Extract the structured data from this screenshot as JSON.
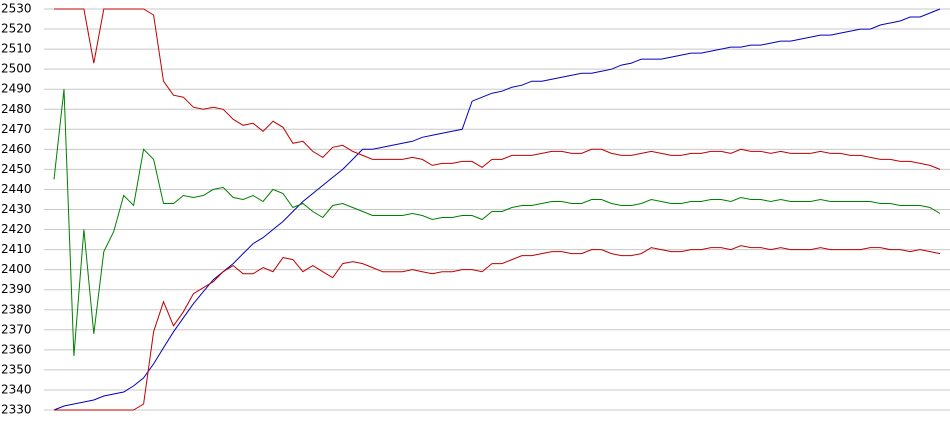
{
  "chart_data": {
    "type": "line",
    "categories": [
      null,
      null,
      null,
      null,
      null,
      null,
      null,
      null,
      null,
      null,
      null,
      null,
      null,
      null,
      null,
      null,
      null,
      null,
      null,
      null,
      null,
      null,
      null,
      null,
      null,
      null,
      null,
      null,
      null,
      null,
      null,
      null,
      null,
      null,
      null,
      null,
      null,
      null,
      null,
      null,
      null,
      null,
      null,
      null,
      null,
      null,
      null,
      null,
      null,
      null,
      null,
      null,
      null,
      null,
      null,
      null,
      null,
      null,
      null,
      null,
      null,
      null,
      null,
      null,
      null,
      null,
      null,
      null,
      null,
      null,
      null,
      null,
      null,
      null,
      null,
      null,
      null,
      null,
      null,
      null,
      null,
      null,
      null,
      null,
      null,
      null,
      null,
      null,
      null,
      null
    ],
    "ylim": [
      2330,
      2530
    ],
    "yticks": [
      2330,
      2340,
      2350,
      2360,
      2370,
      2380,
      2390,
      2400,
      2410,
      2420,
      2430,
      2440,
      2450,
      2460,
      2470,
      2480,
      2490,
      2500,
      2510,
      2520,
      2530
    ],
    "grid": true,
    "series": [
      {
        "color": "#0000c0",
        "values": [
          2330,
          2332,
          2333,
          2334,
          2335,
          2337,
          2338,
          2339,
          2342,
          2346,
          2353,
          2361,
          2369,
          2376,
          2383,
          2389,
          2395,
          2399,
          2403,
          2408,
          2413,
          2416,
          2420,
          2424,
          2429,
          2434,
          2438,
          2442,
          2446,
          2450,
          2455,
          2460,
          2460,
          2461,
          2462,
          2463,
          2464,
          2466,
          2467,
          2468,
          2469,
          2470,
          2484,
          2486,
          2488,
          2489,
          2491,
          2492,
          2494,
          2494,
          2495,
          2496,
          2497,
          2498,
          2498,
          2499,
          2500,
          2502,
          2503,
          2505,
          2505,
          2505,
          2506,
          2507,
          2508,
          2508,
          2509,
          2510,
          2511,
          2511,
          2512,
          2512,
          2513,
          2514,
          2514,
          2515,
          2516,
          2517,
          2517,
          2518,
          2519,
          2520,
          2520,
          2522,
          2523,
          2524,
          2526,
          2526,
          2528,
          2530
        ]
      },
      {
        "color": "#c00000",
        "values": [
          2530,
          2530,
          2530,
          2530,
          2503,
          2530,
          2530,
          2530,
          2530,
          2530,
          2527,
          2494,
          2487,
          2486,
          2481,
          2480,
          2481,
          2480,
          2475,
          2472,
          2473,
          2469,
          2474,
          2471,
          2463,
          2464,
          2459,
          2456,
          2461,
          2462,
          2459,
          2457,
          2455,
          2455,
          2455,
          2455,
          2456,
          2455,
          2452,
          2453,
          2453,
          2454,
          2454,
          2451,
          2455,
          2455,
          2457,
          2457,
          2457,
          2458,
          2459,
          2459,
          2458,
          2458,
          2460,
          2460,
          2458,
          2457,
          2457,
          2458,
          2459,
          2458,
          2457,
          2457,
          2458,
          2458,
          2459,
          2459,
          2458,
          2460,
          2459,
          2459,
          2458,
          2459,
          2458,
          2458,
          2458,
          2459,
          2458,
          2458,
          2457,
          2457,
          2456,
          2455,
          2455,
          2454,
          2454,
          2453,
          2452,
          2450
        ]
      },
      {
        "color": "#008000",
        "values": [
          2445,
          2490,
          2357,
          2420,
          2368,
          2409,
          2419,
          2437,
          2432,
          2460,
          2455,
          2433,
          2433,
          2437,
          2436,
          2437,
          2440,
          2441,
          2436,
          2435,
          2437,
          2434,
          2440,
          2438,
          2431,
          2433,
          2429,
          2426,
          2432,
          2433,
          2431,
          2429,
          2427,
          2427,
          2427,
          2427,
          2428,
          2427,
          2425,
          2426,
          2426,
          2427,
          2427,
          2425,
          2429,
          2429,
          2431,
          2432,
          2432,
          2433,
          2434,
          2434,
          2433,
          2433,
          2435,
          2435,
          2433,
          2432,
          2432,
          2433,
          2435,
          2434,
          2433,
          2433,
          2434,
          2434,
          2435,
          2435,
          2434,
          2436,
          2435,
          2435,
          2434,
          2435,
          2434,
          2434,
          2434,
          2435,
          2434,
          2434,
          2434,
          2434,
          2434,
          2433,
          2433,
          2432,
          2432,
          2432,
          2431,
          2428
        ]
      },
      {
        "color": "#c00000",
        "values": [
          2330,
          2330,
          2330,
          2330,
          2330,
          2330,
          2330,
          2330,
          2330,
          2333,
          2369,
          2384,
          2372,
          2379,
          2388,
          2391,
          2394,
          2399,
          2402,
          2398,
          2398,
          2401,
          2399,
          2406,
          2405,
          2399,
          2402,
          2399,
          2396,
          2403,
          2404,
          2403,
          2401,
          2399,
          2399,
          2399,
          2400,
          2399,
          2398,
          2399,
          2399,
          2400,
          2400,
          2399,
          2403,
          2403,
          2405,
          2407,
          2407,
          2408,
          2409,
          2409,
          2408,
          2408,
          2410,
          2410,
          2408,
          2407,
          2407,
          2408,
          2411,
          2410,
          2409,
          2409,
          2410,
          2410,
          2411,
          2411,
          2410,
          2412,
          2411,
          2411,
          2410,
          2411,
          2410,
          2410,
          2410,
          2411,
          2410,
          2410,
          2410,
          2410,
          2411,
          2411,
          2410,
          2410,
          2409,
          2410,
          2409,
          2408
        ]
      }
    ]
  }
}
